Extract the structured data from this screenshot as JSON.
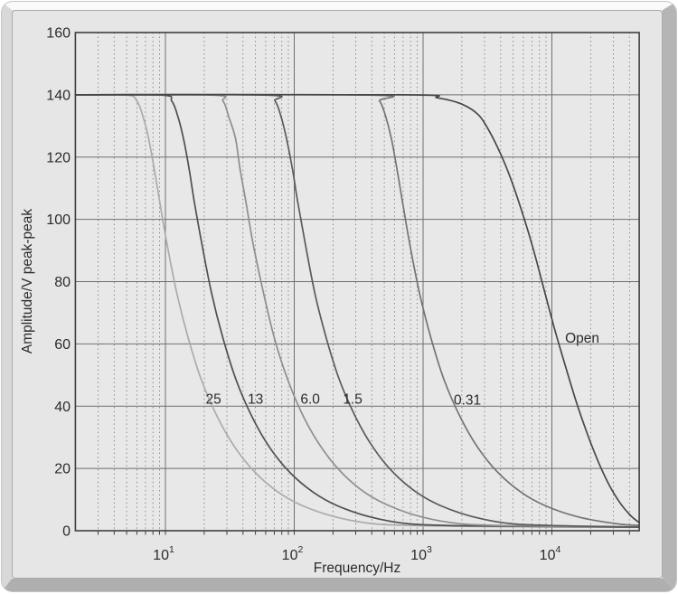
{
  "frame": {
    "style": "beveled-slab"
  },
  "chart_data": {
    "type": "line",
    "title": "",
    "xlabel": "Frequency/Hz",
    "ylabel": "Amplitude/V peak-peak",
    "x_scale": "log",
    "x_range_hz": [
      2,
      47600
    ],
    "y_range": [
      0,
      160
    ],
    "y_ticks": [
      0,
      20,
      40,
      60,
      80,
      100,
      120,
      140,
      160
    ],
    "x_ticks": [
      {
        "base": "10",
        "exp": "1",
        "value": 10
      },
      {
        "base": "10",
        "exp": "2",
        "value": 100
      },
      {
        "base": "10",
        "exp": "3",
        "value": 1000
      },
      {
        "base": "10",
        "exp": "4",
        "value": 10000
      }
    ],
    "minor_x": [
      3,
      4,
      5,
      6,
      7,
      8,
      9,
      20,
      30,
      40,
      50,
      60,
      70,
      80,
      90,
      200,
      300,
      400,
      500,
      600,
      700,
      800,
      900,
      2000,
      3000,
      4000,
      5000,
      6000,
      7000,
      8000,
      9000,
      20000,
      30000,
      40000
    ],
    "grid": {
      "horizontal": "solid",
      "vertical_major": "solid",
      "vertical_minor": "dotted"
    },
    "legend": "inline-curve-labels",
    "colors": {
      "plot_bg": "#e8e8e8",
      "panel_bg": "#e6e6e6",
      "grid": "#6f6f6f",
      "minor_grid": "#5f5f5f",
      "axis": "#3f3f3f",
      "text": "#2b2b2b"
    },
    "series": [
      {
        "name": "25",
        "color": "#ababab",
        "label": {
          "f": 23.6,
          "v": 42.4
        },
        "points": [
          [
            2,
            140
          ],
          [
            5,
            139.9
          ],
          [
            6,
            138
          ],
          [
            6.7,
            133
          ],
          [
            7.4,
            126
          ],
          [
            8.2,
            116
          ],
          [
            9,
            106
          ],
          [
            10.3,
            92
          ],
          [
            12.3,
            76
          ],
          [
            15,
            62
          ],
          [
            19,
            48.5
          ],
          [
            25.5,
            36.3
          ],
          [
            35,
            26.5
          ],
          [
            50,
            18.6
          ],
          [
            75,
            12.4
          ],
          [
            115,
            8.1
          ],
          [
            210,
            4.4
          ],
          [
            420,
            2.2
          ],
          [
            1000,
            1.6
          ],
          [
            4000,
            1.3
          ],
          [
            15000,
            1.2
          ],
          [
            47000,
            1.1
          ]
        ]
      },
      {
        "name": "13",
        "color": "#4f4f4f",
        "label": {
          "f": 50,
          "v": 42.4
        },
        "points": [
          [
            2,
            140
          ],
          [
            9.3,
            139.9
          ],
          [
            11.2,
            138
          ],
          [
            12.5,
            133
          ],
          [
            13.8,
            126
          ],
          [
            15.3,
            116
          ],
          [
            16.7,
            106
          ],
          [
            19.2,
            92
          ],
          [
            22.9,
            76
          ],
          [
            27.9,
            62
          ],
          [
            35.3,
            48.5
          ],
          [
            47.4,
            36.3
          ],
          [
            65,
            26.5
          ],
          [
            93,
            18.6
          ],
          [
            140,
            12.4
          ],
          [
            214,
            8.1
          ],
          [
            390,
            4.4
          ],
          [
            780,
            2.2
          ],
          [
            1900,
            1.6
          ],
          [
            6000,
            1.4
          ],
          [
            20000,
            1.2
          ],
          [
            47000,
            1.1
          ]
        ]
      },
      {
        "name": "6.0",
        "color": "#8e8e8e",
        "label": {
          "f": 133,
          "v": 42.4
        },
        "points": [
          [
            2,
            140
          ],
          [
            23,
            139.9
          ],
          [
            28,
            138
          ],
          [
            31,
            133
          ],
          [
            35,
            126
          ],
          [
            38,
            116
          ],
          [
            42,
            106
          ],
          [
            48,
            92
          ],
          [
            58,
            76
          ],
          [
            70,
            62
          ],
          [
            89,
            48.5
          ],
          [
            119,
            36.3
          ],
          [
            164,
            26.5
          ],
          [
            234,
            18.6
          ],
          [
            350,
            12.4
          ],
          [
            540,
            8.1
          ],
          [
            980,
            4.4
          ],
          [
            1970,
            2.2
          ],
          [
            4700,
            1.6
          ],
          [
            15000,
            1.3
          ],
          [
            47000,
            1.2
          ]
        ]
      },
      {
        "name": "1.5",
        "color": "#5a5a5a",
        "label": {
          "f": 284,
          "v": 42.4
        },
        "points": [
          [
            2,
            140
          ],
          [
            59,
            139.9
          ],
          [
            71,
            138
          ],
          [
            79,
            133
          ],
          [
            87,
            126
          ],
          [
            97,
            116
          ],
          [
            106,
            106
          ],
          [
            122,
            92
          ],
          [
            145,
            76
          ],
          [
            177,
            62
          ],
          [
            224,
            48.5
          ],
          [
            301,
            36.3
          ],
          [
            413,
            26.5
          ],
          [
            590,
            18.6
          ],
          [
            885,
            12.4
          ],
          [
            1360,
            8.1
          ],
          [
            2480,
            4.4
          ],
          [
            4950,
            2.2
          ],
          [
            12000,
            1.6
          ],
          [
            30000,
            1.3
          ],
          [
            47000,
            1.2
          ]
        ]
      },
      {
        "name": "0.31",
        "color": "#747474",
        "label": {
          "f": 2210,
          "v": 42.1
        },
        "points": [
          [
            2,
            140
          ],
          [
            380,
            139.9
          ],
          [
            460,
            138
          ],
          [
            513,
            133
          ],
          [
            567,
            126
          ],
          [
            628,
            116
          ],
          [
            690,
            106
          ],
          [
            789,
            92
          ],
          [
            942,
            76
          ],
          [
            1150,
            62
          ],
          [
            1455,
            48.5
          ],
          [
            1954,
            36.3
          ],
          [
            2680,
            26.5
          ],
          [
            3830,
            18.6
          ],
          [
            5750,
            12.4
          ],
          [
            8810,
            8.1
          ],
          [
            16100,
            4.4
          ],
          [
            32200,
            2.2
          ],
          [
            47600,
            1.7
          ]
        ]
      },
      {
        "name": "Open",
        "color": "#484848",
        "label": {
          "f": 17200,
          "v": 62
        },
        "points": [
          [
            2,
            140
          ],
          [
            700,
            140
          ],
          [
            1300,
            139
          ],
          [
            2000,
            137
          ],
          [
            2700,
            133.5
          ],
          [
            3300,
            128
          ],
          [
            4000,
            121
          ],
          [
            4800,
            113
          ],
          [
            5800,
            103
          ],
          [
            7000,
            92
          ],
          [
            8500,
            79
          ],
          [
            10300,
            66
          ],
          [
            12500,
            54
          ],
          [
            15300,
            42
          ],
          [
            18700,
            31.5
          ],
          [
            23000,
            22
          ],
          [
            28000,
            14.5
          ],
          [
            34000,
            8.8
          ],
          [
            41000,
            4.8
          ],
          [
            47600,
            2.6
          ]
        ]
      }
    ]
  }
}
